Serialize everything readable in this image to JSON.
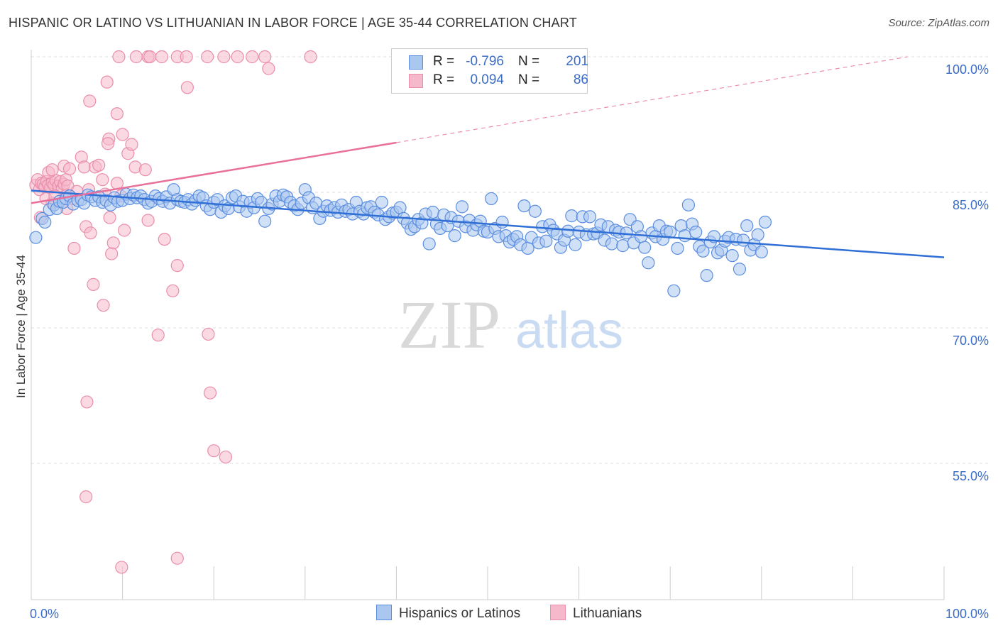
{
  "title": "HISPANIC OR LATINO VS LITHUANIAN IN LABOR FORCE | AGE 35-44 CORRELATION CHART",
  "source": "Source: ZipAtlas.com",
  "watermark": {
    "zip": "ZIP",
    "atlas": "atlas"
  },
  "colors": {
    "blue_fill": "#a9c7ef",
    "blue_stroke": "#5b8ee0",
    "blue_line": "#2f6fd6",
    "pink_fill": "#f6b9cc",
    "pink_stroke": "#ea8eab",
    "pink_line": "#e8709a",
    "tick_text": "#3b6cc6",
    "grid": "#dddddd"
  },
  "legend": {
    "rows": [
      {
        "r_label": "R =",
        "r_value": "-0.796",
        "n_label": "N =",
        "n_value": "201",
        "color": "blue"
      },
      {
        "r_label": "R =",
        "r_value": "0.094",
        "n_label": "N =",
        "n_value": "86",
        "color": "pink"
      }
    ]
  },
  "bottom_legend": {
    "series1": "Hispanics or Latinos",
    "series2": "Lithuanians"
  },
  "chart_data": {
    "type": "scatter",
    "title": "HISPANIC OR LATINO VS LITHUANIAN IN LABOR FORCE | AGE 35-44 CORRELATION CHART",
    "xlabel": "",
    "ylabel": "In Labor Force | Age 35-44",
    "xlim": [
      0,
      100
    ],
    "ylim": [
      40,
      102
    ],
    "x_ticks": [
      {
        "value": 0,
        "label": "0.0%"
      },
      {
        "value": 100,
        "label": "100.0%"
      }
    ],
    "y_ticks": [
      {
        "value": 100,
        "label": "100.0%"
      },
      {
        "value": 85,
        "label": "85.0%"
      },
      {
        "value": 70,
        "label": "70.0%"
      },
      {
        "value": 55,
        "label": "55.0%"
      }
    ],
    "grid": "horizontal dashed",
    "legend_placement": "top-center",
    "series": [
      {
        "name": "Hispanics or Latinos",
        "r": -0.796,
        "n": 201,
        "trend": {
          "x": [
            0,
            100
          ],
          "y": [
            85.2,
            77.8
          ],
          "style": "solid"
        },
        "points": [
          [
            0.5,
            80.0
          ],
          [
            1.2,
            82.1
          ],
          [
            1.5,
            81.7
          ],
          [
            2.0,
            83.1
          ],
          [
            2.5,
            83.6
          ],
          [
            2.8,
            83.2
          ],
          [
            3.1,
            84.0
          ],
          [
            3.5,
            83.9
          ],
          [
            3.8,
            84.3
          ],
          [
            4.2,
            84.6
          ],
          [
            4.6,
            83.7
          ],
          [
            5.1,
            84.1
          ],
          [
            5.5,
            84.2
          ],
          [
            5.8,
            83.8
          ],
          [
            6.2,
            84.7
          ],
          [
            6.6,
            84.5
          ],
          [
            7.0,
            84.1
          ],
          [
            7.4,
            84.5
          ],
          [
            7.8,
            83.9
          ],
          [
            8.2,
            84.1
          ],
          [
            8.7,
            83.6
          ],
          [
            9.1,
            84.4
          ],
          [
            9.5,
            84.0
          ],
          [
            10.0,
            84.1
          ],
          [
            10.4,
            84.8
          ],
          [
            10.8,
            84.3
          ],
          [
            11.2,
            84.7
          ],
          [
            11.6,
            84.4
          ],
          [
            12.0,
            84.6
          ],
          [
            12.4,
            84.2
          ],
          [
            12.8,
            83.8
          ],
          [
            13.2,
            84.0
          ],
          [
            13.6,
            84.6
          ],
          [
            14.0,
            84.3
          ],
          [
            14.4,
            84.0
          ],
          [
            14.8,
            84.5
          ],
          [
            15.2,
            83.8
          ],
          [
            15.6,
            85.3
          ],
          [
            16.0,
            84.2
          ],
          [
            16.4,
            84.0
          ],
          [
            16.8,
            83.9
          ],
          [
            17.2,
            84.2
          ],
          [
            17.6,
            83.7
          ],
          [
            18.0,
            84.1
          ],
          [
            18.4,
            84.6
          ],
          [
            18.8,
            84.4
          ],
          [
            19.2,
            83.5
          ],
          [
            19.6,
            83.1
          ],
          [
            20.0,
            83.9
          ],
          [
            20.4,
            84.2
          ],
          [
            20.8,
            82.8
          ],
          [
            21.2,
            83.5
          ],
          [
            21.6,
            83.2
          ],
          [
            22.0,
            84.4
          ],
          [
            22.4,
            84.6
          ],
          [
            22.8,
            83.4
          ],
          [
            23.2,
            84.0
          ],
          [
            23.6,
            82.9
          ],
          [
            24.0,
            83.9
          ],
          [
            24.4,
            83.3
          ],
          [
            24.8,
            84.3
          ],
          [
            25.2,
            83.9
          ],
          [
            25.6,
            81.8
          ],
          [
            26.0,
            83.2
          ],
          [
            26.4,
            83.7
          ],
          [
            26.8,
            84.6
          ],
          [
            27.2,
            84.0
          ],
          [
            27.6,
            84.7
          ],
          [
            28.0,
            84.5
          ],
          [
            28.4,
            83.9
          ],
          [
            28.8,
            83.5
          ],
          [
            29.2,
            83.1
          ],
          [
            29.6,
            83.8
          ],
          [
            30.0,
            85.3
          ],
          [
            30.4,
            84.4
          ],
          [
            30.8,
            83.3
          ],
          [
            31.2,
            83.8
          ],
          [
            31.6,
            82.1
          ],
          [
            32.0,
            82.9
          ],
          [
            32.4,
            83.5
          ],
          [
            32.8,
            83.0
          ],
          [
            33.2,
            83.3
          ],
          [
            33.6,
            82.8
          ],
          [
            34.0,
            83.6
          ],
          [
            34.4,
            82.9
          ],
          [
            34.8,
            83.1
          ],
          [
            35.2,
            82.6
          ],
          [
            35.6,
            83.9
          ],
          [
            36.0,
            82.9
          ],
          [
            36.4,
            82.6
          ],
          [
            36.8,
            83.3
          ],
          [
            37.2,
            83.4
          ],
          [
            37.6,
            82.8
          ],
          [
            38.0,
            82.5
          ],
          [
            38.4,
            83.9
          ],
          [
            38.8,
            82.0
          ],
          [
            39.2,
            82.3
          ],
          [
            39.6,
            82.7
          ],
          [
            40.0,
            82.8
          ],
          [
            40.4,
            83.3
          ],
          [
            40.8,
            82.1
          ],
          [
            41.2,
            81.6
          ],
          [
            41.6,
            80.9
          ],
          [
            42.0,
            81.2
          ],
          [
            42.4,
            82.0
          ],
          [
            42.8,
            81.6
          ],
          [
            43.2,
            82.6
          ],
          [
            43.6,
            79.3
          ],
          [
            44.0,
            82.8
          ],
          [
            44.4,
            81.5
          ],
          [
            44.8,
            81.0
          ],
          [
            45.2,
            82.5
          ],
          [
            45.6,
            81.3
          ],
          [
            46.0,
            82.2
          ],
          [
            46.4,
            80.2
          ],
          [
            46.8,
            81.8
          ],
          [
            47.2,
            83.4
          ],
          [
            47.6,
            81.2
          ],
          [
            48.0,
            81.9
          ],
          [
            48.4,
            80.8
          ],
          [
            48.8,
            81.4
          ],
          [
            49.2,
            81.8
          ],
          [
            49.6,
            80.7
          ],
          [
            50.0,
            80.6
          ],
          [
            50.4,
            84.3
          ],
          [
            50.8,
            81.0
          ],
          [
            51.2,
            80.1
          ],
          [
            51.6,
            81.7
          ],
          [
            52.0,
            80.2
          ],
          [
            52.4,
            79.5
          ],
          [
            52.8,
            79.8
          ],
          [
            53.2,
            80.1
          ],
          [
            53.6,
            79.2
          ],
          [
            54.0,
            83.5
          ],
          [
            54.4,
            78.8
          ],
          [
            54.8,
            80.0
          ],
          [
            55.2,
            82.9
          ],
          [
            55.6,
            79.4
          ],
          [
            56.0,
            81.2
          ],
          [
            56.4,
            79.6
          ],
          [
            56.8,
            81.4
          ],
          [
            57.2,
            80.8
          ],
          [
            57.6,
            80.4
          ],
          [
            58.0,
            78.9
          ],
          [
            58.4,
            79.7
          ],
          [
            58.8,
            80.7
          ],
          [
            59.2,
            82.4
          ],
          [
            59.6,
            79.2
          ],
          [
            60.0,
            80.6
          ],
          [
            60.4,
            82.3
          ],
          [
            60.8,
            80.3
          ],
          [
            61.2,
            82.3
          ],
          [
            61.6,
            80.4
          ],
          [
            62.0,
            80.5
          ],
          [
            62.4,
            81.4
          ],
          [
            62.8,
            79.7
          ],
          [
            63.2,
            81.2
          ],
          [
            63.6,
            79.3
          ],
          [
            64.0,
            80.8
          ],
          [
            64.4,
            80.6
          ],
          [
            64.8,
            79.1
          ],
          [
            65.2,
            80.5
          ],
          [
            65.6,
            82.0
          ],
          [
            66.0,
            79.4
          ],
          [
            66.4,
            81.2
          ],
          [
            66.8,
            80.1
          ],
          [
            67.2,
            78.9
          ],
          [
            67.6,
            77.2
          ],
          [
            68.0,
            80.5
          ],
          [
            68.4,
            80.1
          ],
          [
            68.8,
            81.3
          ],
          [
            69.2,
            79.8
          ],
          [
            69.6,
            80.7
          ],
          [
            70.0,
            80.6
          ],
          [
            70.4,
            74.1
          ],
          [
            70.8,
            78.8
          ],
          [
            71.2,
            81.3
          ],
          [
            71.6,
            80.2
          ],
          [
            72.0,
            83.6
          ],
          [
            72.4,
            81.5
          ],
          [
            72.8,
            80.6
          ],
          [
            73.2,
            79.0
          ],
          [
            73.6,
            78.5
          ],
          [
            74.0,
            75.8
          ],
          [
            74.4,
            79.5
          ],
          [
            74.8,
            80.1
          ],
          [
            75.2,
            78.3
          ],
          [
            75.6,
            78.6
          ],
          [
            76.0,
            79.6
          ],
          [
            76.4,
            80.0
          ],
          [
            76.8,
            78.0
          ],
          [
            77.2,
            79.8
          ],
          [
            77.6,
            76.5
          ],
          [
            78.0,
            79.7
          ],
          [
            78.4,
            81.3
          ],
          [
            78.8,
            78.6
          ],
          [
            79.2,
            79.2
          ],
          [
            79.6,
            80.3
          ],
          [
            80.0,
            78.4
          ],
          [
            80.4,
            81.7
          ]
        ]
      },
      {
        "name": "Lithuanians",
        "r": 0.094,
        "n": 86,
        "trend": {
          "x": [
            0,
            40
          ],
          "y": [
            83.8,
            90.5
          ],
          "style": "solid",
          "extended": {
            "x": [
              40,
              96
            ],
            "y": [
              90.5,
              100.0
            ],
            "style": "dashed"
          }
        },
        "points": [
          [
            0.5,
            85.8
          ],
          [
            0.7,
            86.4
          ],
          [
            0.9,
            85.3
          ],
          [
            1.1,
            86.0
          ],
          [
            1.3,
            85.9
          ],
          [
            1.5,
            85.6
          ],
          [
            1.7,
            86.2
          ],
          [
            1.9,
            85.8
          ],
          [
            2.1,
            85.5
          ],
          [
            2.3,
            86.1
          ],
          [
            2.5,
            85.8
          ],
          [
            2.7,
            86.3
          ],
          [
            3.0,
            85.7
          ],
          [
            3.2,
            86.2
          ],
          [
            3.4,
            85.4
          ],
          [
            3.6,
            85.9
          ],
          [
            3.8,
            86.4
          ],
          [
            4.0,
            85.7
          ],
          [
            1.9,
            87.2
          ],
          [
            2.3,
            87.5
          ],
          [
            3.6,
            87.9
          ],
          [
            4.2,
            87.6
          ],
          [
            5.5,
            88.9
          ],
          [
            5.8,
            87.8
          ],
          [
            6.3,
            85.3
          ],
          [
            6.0,
            81.2
          ],
          [
            6.5,
            80.5
          ],
          [
            4.6,
            84.3
          ],
          [
            3.9,
            84.7
          ],
          [
            5.0,
            85.1
          ],
          [
            7.0,
            87.8
          ],
          [
            7.4,
            88.0
          ],
          [
            7.8,
            86.4
          ],
          [
            8.1,
            84.8
          ],
          [
            8.6,
            82.2
          ],
          [
            9.0,
            79.4
          ],
          [
            8.8,
            78.2
          ],
          [
            9.4,
            86.0
          ],
          [
            9.8,
            84.6
          ],
          [
            10.2,
            80.8
          ],
          [
            6.8,
            74.8
          ],
          [
            7.9,
            72.5
          ],
          [
            4.7,
            78.8
          ],
          [
            3.9,
            83.2
          ],
          [
            2.3,
            83.8
          ],
          [
            1.0,
            82.2
          ],
          [
            1.6,
            84.3
          ],
          [
            2.6,
            84.6
          ],
          [
            6.4,
            95.1
          ],
          [
            8.3,
            97.2
          ],
          [
            9.4,
            93.7
          ],
          [
            10.0,
            91.4
          ],
          [
            10.6,
            89.3
          ],
          [
            11.4,
            87.8
          ],
          [
            8.5,
            90.9
          ],
          [
            8.4,
            90.4
          ],
          [
            12.5,
            87.5
          ],
          [
            11.0,
            90.3
          ],
          [
            12.8,
            81.9
          ],
          [
            14.6,
            79.8
          ],
          [
            15.5,
            74.1
          ],
          [
            16.0,
            76.9
          ],
          [
            13.9,
            69.2
          ],
          [
            19.4,
            69.3
          ],
          [
            17.1,
            96.6
          ],
          [
            14.3,
            100.0
          ],
          [
            16.0,
            100.0
          ],
          [
            19.3,
            100.0
          ],
          [
            21.1,
            100.0
          ],
          [
            22.6,
            100.0
          ],
          [
            24.2,
            100.0
          ],
          [
            25.6,
            100.0
          ],
          [
            26.0,
            98.7
          ],
          [
            30.6,
            100.0
          ],
          [
            11.5,
            100.0
          ],
          [
            12.8,
            100.0
          ],
          [
            9.6,
            100.0
          ],
          [
            13.0,
            100.0
          ],
          [
            6.1,
            61.8
          ],
          [
            6.0,
            51.3
          ],
          [
            9.9,
            43.5
          ],
          [
            16.0,
            44.5
          ],
          [
            19.6,
            62.8
          ],
          [
            20.0,
            56.4
          ],
          [
            21.3,
            55.7
          ],
          [
            17.0,
            100.0
          ]
        ]
      }
    ]
  }
}
